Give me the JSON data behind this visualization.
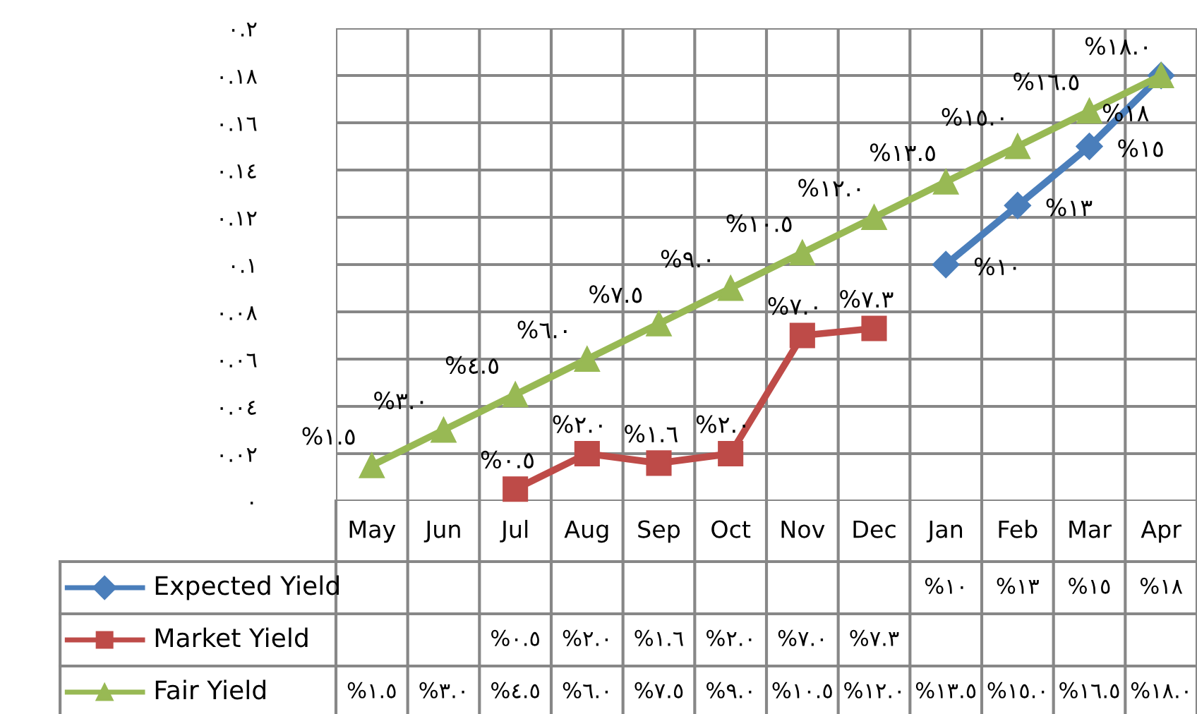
{
  "chart_data": {
    "type": "line",
    "categories": [
      "May",
      "Jun",
      "Jul",
      "Aug",
      "Sep",
      "Oct",
      "Nov",
      "Dec",
      "Jan",
      "Feb",
      "Mar",
      "Apr"
    ],
    "series": [
      {
        "name": "Expected Yield",
        "color": "#4a7ebb",
        "marker": "diamond",
        "values": [
          null,
          null,
          null,
          null,
          null,
          null,
          null,
          null,
          0.1,
          0.125,
          0.15,
          0.18
        ],
        "value_labels": [
          null,
          null,
          null,
          null,
          null,
          null,
          null,
          null,
          "%١٠",
          "%١٣",
          "%١٥",
          "%١٨"
        ]
      },
      {
        "name": "Market Yield",
        "color": "#be4b48",
        "marker": "square",
        "values": [
          null,
          null,
          0.005,
          0.02,
          0.016,
          0.02,
          0.07,
          0.073,
          null,
          null,
          null,
          null
        ],
        "value_labels": [
          null,
          null,
          "%٠.٥",
          "%٢.٠",
          "%١.٦",
          "%٢.٠",
          "%٧.٠",
          "%٧.٣",
          null,
          null,
          null,
          null
        ]
      },
      {
        "name": "Fair Yield",
        "color": "#98b954",
        "marker": "triangle",
        "values": [
          0.015,
          0.03,
          0.045,
          0.06,
          0.075,
          0.09,
          0.105,
          0.12,
          0.135,
          0.15,
          0.165,
          0.18
        ],
        "value_labels": [
          "%١.٥",
          "%٣.٠",
          "%٤.٥",
          "%٦.٠",
          "%٧.٥",
          "%٩.٠",
          "%١٠.٥",
          "%١٢.٠",
          "%١٣.٥",
          "%١٥.٠",
          "%١٦.٥",
          "%١٨.٠"
        ]
      }
    ],
    "ylim": [
      0,
      0.2
    ],
    "yticks": [
      {
        "value": 0,
        "label": "٠"
      },
      {
        "value": 0.02,
        "label": "٠.٠٢"
      },
      {
        "value": 0.04,
        "label": "٠.٠٤"
      },
      {
        "value": 0.06,
        "label": "٠.٠٦"
      },
      {
        "value": 0.08,
        "label": "٠.٠٨"
      },
      {
        "value": 0.1,
        "label": "٠.١"
      },
      {
        "value": 0.12,
        "label": "٠.١٢"
      },
      {
        "value": 0.14,
        "label": "٠.١٤"
      },
      {
        "value": 0.16,
        "label": "٠.١٦"
      },
      {
        "value": 0.18,
        "label": "٠.١٨"
      },
      {
        "value": 0.2,
        "label": "٠.٢"
      }
    ],
    "grid": true,
    "legend": "bottom left",
    "line_style": "solid"
  }
}
